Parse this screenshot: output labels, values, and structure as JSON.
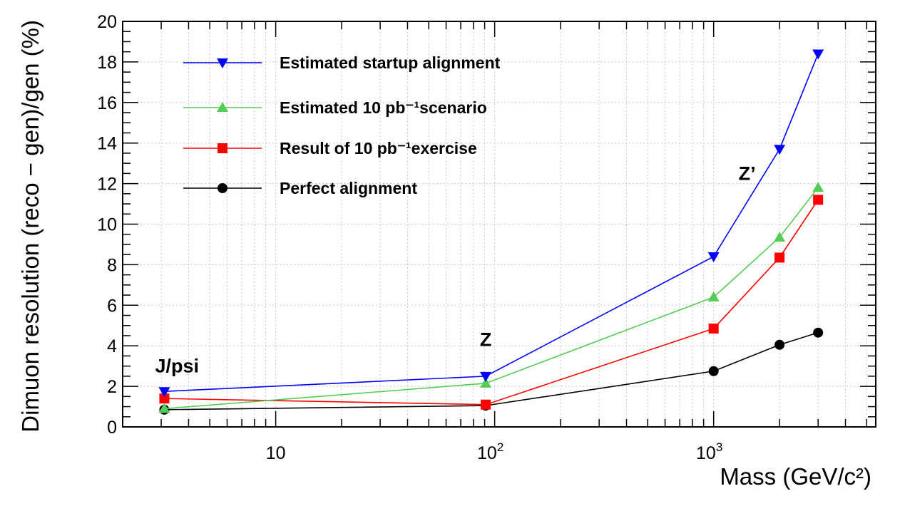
{
  "chart_data": {
    "type": "line",
    "xscale": "log",
    "xlim": [
      2.0,
      5500
    ],
    "ylim": [
      0,
      20
    ],
    "xlabel": "Mass (GeV/c²)",
    "ylabel": "Dimuon resolution (reco − gen)/gen (%)",
    "grid": true,
    "legend_placement": "top-left",
    "x_ticks": [
      {
        "value": 10,
        "label": "10",
        "sup": ""
      },
      {
        "value": 100,
        "label": "10",
        "sup": "2"
      },
      {
        "value": 1000,
        "label": "10",
        "sup": "3"
      }
    ],
    "y_ticks": [
      0,
      2,
      4,
      6,
      8,
      10,
      12,
      14,
      16,
      18,
      20
    ],
    "x": [
      3.1,
      91,
      1000,
      2000,
      3000
    ],
    "series": [
      {
        "name": "Estimated startup alignment",
        "color": "#0000ff",
        "marker": "triangle-down",
        "values": [
          1.75,
          2.5,
          8.4,
          13.7,
          18.4
        ]
      },
      {
        "name": "Estimated 10 pb⁻¹scenario",
        "color": "#55cc55",
        "marker": "triangle-up",
        "values": [
          0.9,
          2.15,
          6.4,
          9.35,
          11.8
        ]
      },
      {
        "name": "Result of 10 pb⁻¹exercise",
        "color": "#ff0000",
        "marker": "square",
        "values": [
          1.4,
          1.1,
          4.85,
          8.35,
          11.2
        ]
      },
      {
        "name": "Perfect alignment",
        "color": "#000000",
        "marker": "circle",
        "values": [
          0.85,
          1.05,
          2.75,
          4.05,
          4.65
        ]
      }
    ],
    "annotations": [
      {
        "text": "J/psi",
        "x": 3.1,
        "y": 3.0
      },
      {
        "text": "Z",
        "x": 91,
        "y": 4.3
      },
      {
        "text": "Z’",
        "x": 1300,
        "y": 12.5
      }
    ]
  }
}
